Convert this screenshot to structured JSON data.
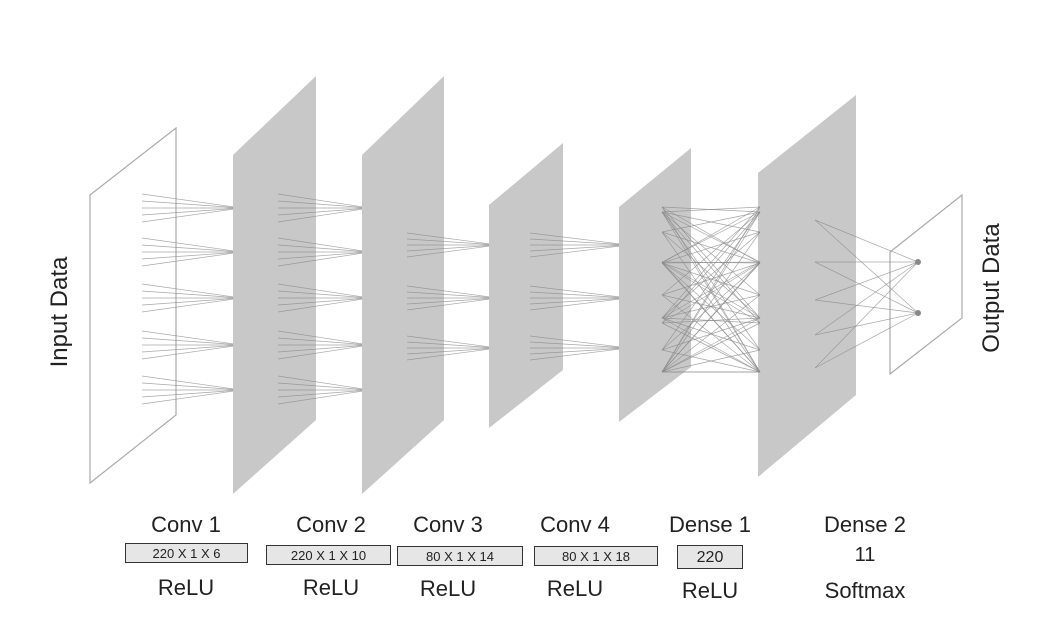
{
  "input_label": "Input Data",
  "output_label": "Output Data",
  "layers": [
    {
      "name": "Conv 1",
      "dims": "220 X 1 X 6",
      "activation": "ReLU"
    },
    {
      "name": "Conv 2",
      "dims": "220 X 1 X 10",
      "activation": "ReLU"
    },
    {
      "name": "Conv 3",
      "dims": "80 X 1 X 14",
      "activation": "ReLU"
    },
    {
      "name": "Conv 4",
      "dims": "80 X 1 X 18",
      "activation": "ReLU"
    },
    {
      "name": "Dense 1",
      "dims": "220",
      "activation": "ReLU"
    },
    {
      "name": "Dense 2",
      "dims": "11",
      "activation": "Softmax"
    }
  ],
  "colors": {
    "plane_fill": "#c8c8c8",
    "edge": "#8a8a8a",
    "outline": "#999999"
  }
}
